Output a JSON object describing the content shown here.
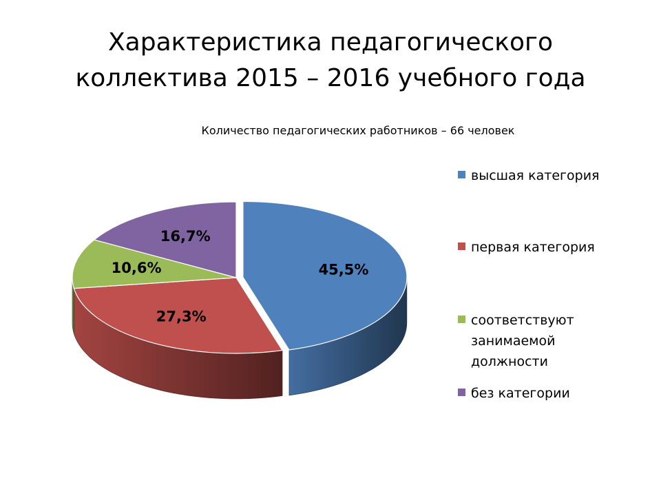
{
  "slide": {
    "title_line1": "Характеристика педагогического",
    "title_line2": "коллектива 2015 – 2016 учебного года"
  },
  "chart_data": {
    "type": "pie",
    "title": "Количество педагогических работников – 66 человек",
    "three_d": true,
    "legend_position": "right",
    "start_angle_deg": 0,
    "direction": "clockwise",
    "categories": [
      "высшая категория",
      "первая категория",
      "соответствуют занимаемой должности",
      "без категории"
    ],
    "values": [
      45.5,
      27.3,
      10.6,
      16.7
    ],
    "data_labels": [
      "45,5%",
      "27,3%",
      "10,6%",
      "16,7%"
    ],
    "exploded": [
      "высшая категория"
    ],
    "colors": [
      "#4F81BD",
      "#C0504D",
      "#9BBB59",
      "#8064A2"
    ],
    "legend": [
      {
        "label": "высшая категория",
        "color": "#4F81BD"
      },
      {
        "label": "первая категория",
        "color": "#C0504D"
      },
      {
        "label": "соответствуют занимаемой должности",
        "color": "#9BBB59"
      },
      {
        "label": "без категории",
        "color": "#8064A2"
      }
    ]
  }
}
